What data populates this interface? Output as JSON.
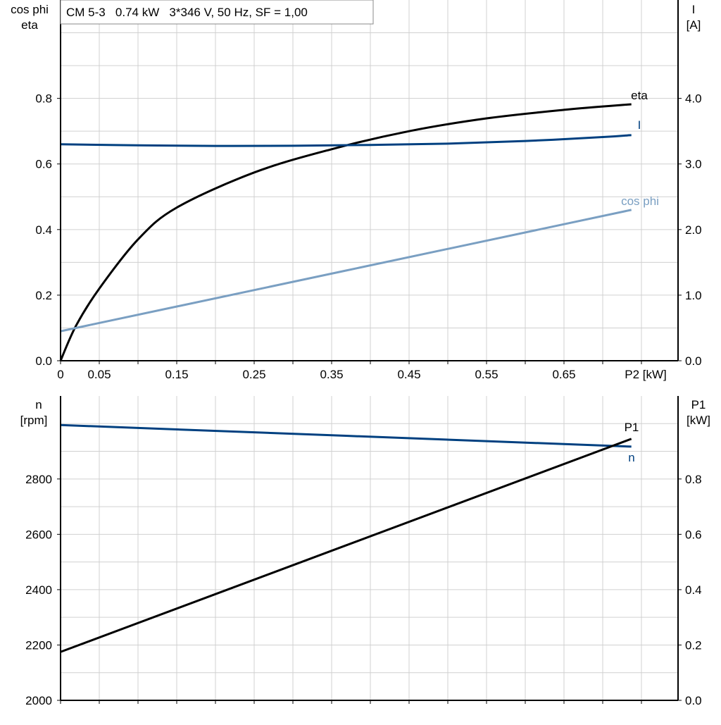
{
  "chart_data": [
    {
      "type": "line",
      "title": "CM 5-3   0.74 kW   3*346 V, 50 Hz, SF = 1,00",
      "xlabel": "P2 [kW]",
      "xlim": [
        0,
        0.8
      ],
      "xticks": [
        "0",
        "0.05",
        "0.15",
        "0.25",
        "0.35",
        "0.45",
        "0.55",
        "0.65"
      ],
      "xtick_values": [
        0,
        0.05,
        0.15,
        0.25,
        0.35,
        0.45,
        0.55,
        0.65
      ],
      "ylabel_left": [
        "cos phi",
        "eta"
      ],
      "ylim_left": [
        0,
        1.1
      ],
      "yticks_left": [
        "0.0",
        "0.2",
        "0.4",
        "0.6",
        "0.8"
      ],
      "ylabel_right": [
        "I",
        "[A]"
      ],
      "ylim_right": [
        0,
        5.5
      ],
      "yticks_right": [
        "0.0",
        "1.0",
        "2.0",
        "3.0",
        "4.0"
      ],
      "grid": true,
      "series": [
        {
          "name": "eta",
          "axis": "left",
          "color": "#000000",
          "x": [
            0,
            0.02,
            0.05,
            0.1,
            0.15,
            0.25,
            0.35,
            0.45,
            0.55,
            0.65,
            0.737
          ],
          "y": [
            0,
            0.107,
            0.22,
            0.37,
            0.467,
            0.574,
            0.645,
            0.7,
            0.739,
            0.765,
            0.782
          ]
        },
        {
          "name": "I",
          "axis": "right",
          "color": "#004080",
          "x": [
            0,
            0.1,
            0.2,
            0.3,
            0.4,
            0.5,
            0.6,
            0.7,
            0.737
          ],
          "y": [
            3.3,
            3.285,
            3.275,
            3.278,
            3.29,
            3.31,
            3.35,
            3.41,
            3.44
          ]
        },
        {
          "name": "cos phi",
          "axis": "left",
          "color": "#7a9fc2",
          "x": [
            0,
            0.737
          ],
          "y": [
            0.09,
            0.46
          ]
        }
      ]
    },
    {
      "type": "line",
      "xlim": [
        0,
        0.8
      ],
      "ylabel_left": [
        "n",
        "[rpm]"
      ],
      "ylim_left": [
        2000,
        3100
      ],
      "yticks_left": [
        "2000",
        "2200",
        "2400",
        "2600",
        "2800"
      ],
      "ylabel_right": [
        "P1",
        "[kW]"
      ],
      "ylim_right": [
        0,
        1.1
      ],
      "yticks_right": [
        "0.0",
        "0.2",
        "0.4",
        "0.6",
        "0.8"
      ],
      "grid": true,
      "series": [
        {
          "name": "n",
          "axis": "left",
          "color": "#004080",
          "x": [
            0,
            0.737
          ],
          "y": [
            2995,
            2917
          ]
        },
        {
          "name": "P1",
          "axis": "right",
          "color": "#000000",
          "x": [
            0,
            0.737
          ],
          "y": [
            0.175,
            0.945
          ]
        }
      ]
    }
  ]
}
